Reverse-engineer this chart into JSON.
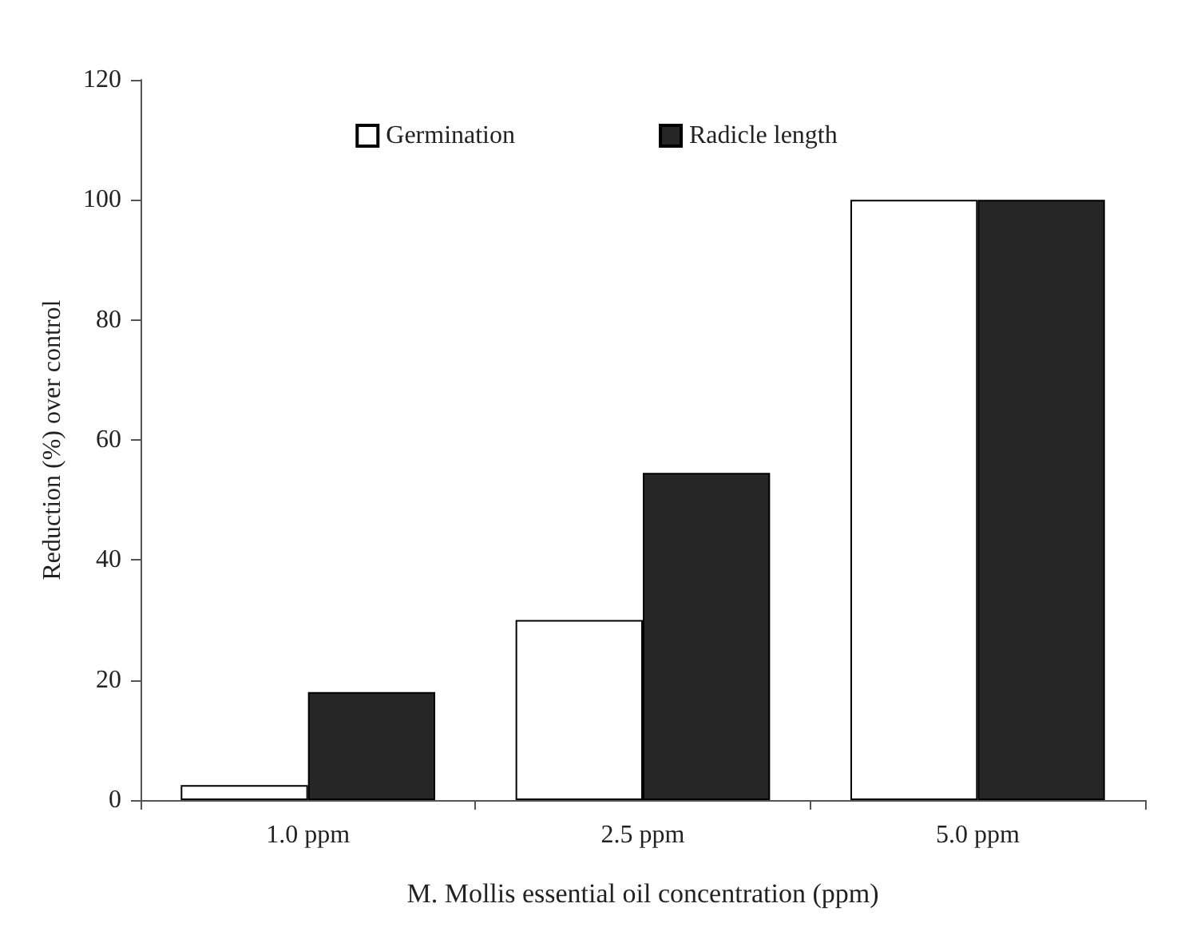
{
  "chart_data": {
    "type": "bar",
    "xlabel": "M. Mollis essential oil concentration (ppm)",
    "ylabel": "Reduction (%) over control",
    "categories": [
      "1.0 ppm",
      "2.5 ppm",
      "5.0 ppm"
    ],
    "series": [
      {
        "name": "Germination",
        "color": "#ffffff",
        "values": [
          2.5,
          30,
          100
        ]
      },
      {
        "name": "Radicle length",
        "color": "#262626",
        "values": [
          18,
          54.5,
          100
        ]
      }
    ],
    "ylim": [
      0,
      120
    ],
    "yticks": [
      0,
      20,
      40,
      60,
      80,
      100,
      120
    ],
    "grid": false,
    "legend": "top"
  }
}
